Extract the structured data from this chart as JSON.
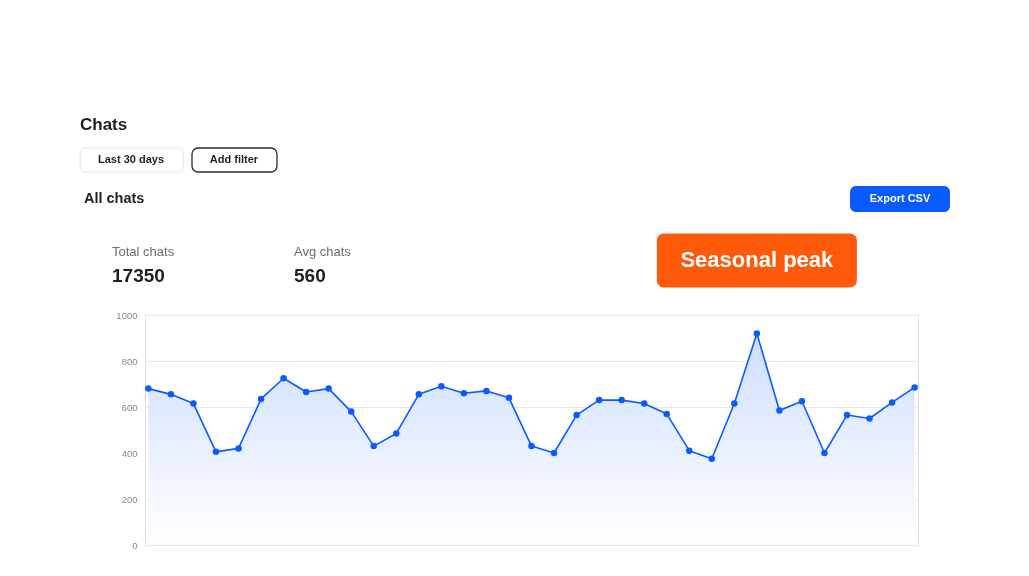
{
  "chart_data": {
    "type": "area",
    "title": "Chats",
    "subtitle": "All chats",
    "categories": [
      null,
      null,
      null,
      null,
      null,
      null,
      null,
      null,
      null,
      null,
      null,
      null,
      null,
      null,
      null,
      null,
      null,
      null,
      null,
      null,
      null,
      null,
      null,
      null,
      null,
      null,
      null,
      null,
      null,
      null,
      null,
      null,
      null,
      null,
      null
    ],
    "series": [
      {
        "color": "#0a5bff",
        "values": [
          680,
          655,
          615,
          405,
          420,
          635,
          725,
          665,
          680,
          580,
          430,
          485,
          655,
          690,
          660,
          670,
          640,
          430,
          400,
          565,
          630,
          630,
          615,
          570,
          410,
          375,
          615,
          920,
          585,
          625,
          400,
          565,
          550,
          620,
          685
        ]
      }
    ],
    "ylim": [
      0,
      1000
    ],
    "yticks": [
      0,
      200,
      400,
      600,
      800,
      1000
    ],
    "grid": "y",
    "tick_labels": "y",
    "marker": "circle",
    "line_style": "solid",
    "annotations": [
      "Last 30 days",
      "Add filter",
      "Export CSV",
      "Total chats",
      "17350",
      "Avg chats",
      "560",
      {
        "text": "Seasonal peak",
        "y": 920
      }
    ]
  }
}
